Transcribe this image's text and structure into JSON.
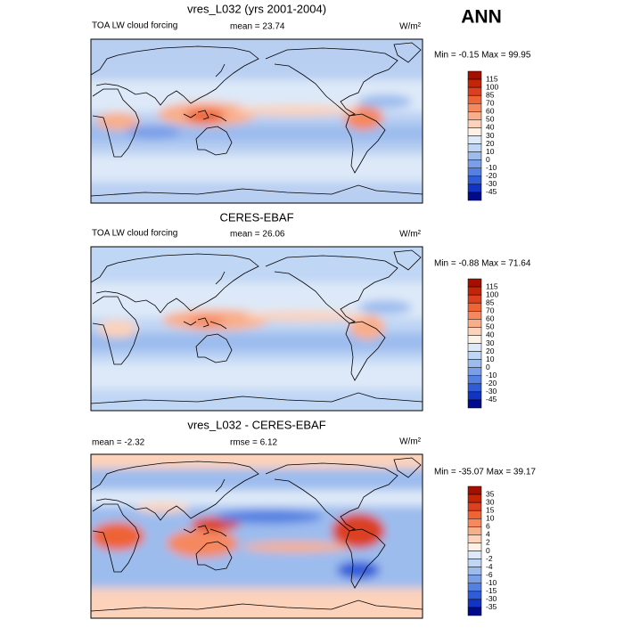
{
  "header": {
    "title": "ANN"
  },
  "panels": [
    {
      "title": "vres_L032 (yrs 2001-2004)",
      "left_label": "TOA LW cloud forcing",
      "center_label": "mean =  23.74",
      "units": "W/m²",
      "minmax": "Min = -0.15 Max =  99.95",
      "colorbar": {
        "labels": [
          "115",
          "100",
          "85",
          "70",
          "60",
          "50",
          "40",
          "30",
          "20",
          "10",
          "0",
          "-10",
          "-20",
          "-30",
          "-45"
        ],
        "colors": [
          "#a50f00",
          "#c42508",
          "#dc4020",
          "#ee6434",
          "#f5885e",
          "#f9ae8a",
          "#fcd2ba",
          "#fdf0e4",
          "#dde9f8",
          "#bfd6f4",
          "#9cbcee",
          "#7a9ee8",
          "#5480e2",
          "#305cd8",
          "#1234c4",
          "#000a8c"
        ]
      }
    },
    {
      "title": "CERES-EBAF",
      "left_label": "TOA LW cloud forcing",
      "center_label": "mean =  26.06",
      "units": "W/m²",
      "minmax": "Min = -0.88 Max =  71.64",
      "colorbar": {
        "labels": [
          "115",
          "100",
          "85",
          "70",
          "60",
          "50",
          "40",
          "30",
          "20",
          "10",
          "0",
          "-10",
          "-20",
          "-30",
          "-45"
        ],
        "colors": [
          "#a50f00",
          "#c42508",
          "#dc4020",
          "#ee6434",
          "#f5885e",
          "#f9ae8a",
          "#fcd2ba",
          "#fdf0e4",
          "#dde9f8",
          "#bfd6f4",
          "#9cbcee",
          "#7a9ee8",
          "#5480e2",
          "#305cd8",
          "#1234c4",
          "#000a8c"
        ]
      }
    },
    {
      "title": "vres_L032 - CERES-EBAF",
      "left_label": "mean =  -2.32",
      "center_label": "rmse =   6.12",
      "units": "W/m²",
      "minmax": "Min = -35.07 Max =  39.17",
      "colorbar": {
        "labels": [
          "35",
          "30",
          "15",
          "10",
          "6",
          "4",
          "2",
          "0",
          "-2",
          "-4",
          "-6",
          "-10",
          "-15",
          "-30",
          "-35"
        ],
        "colors": [
          "#a50f00",
          "#c42508",
          "#dc4020",
          "#ee6434",
          "#f5885e",
          "#f9ae8a",
          "#fcd2ba",
          "#fdf0e4",
          "#dde9f8",
          "#bfd6f4",
          "#9cbcee",
          "#7a9ee8",
          "#5480e2",
          "#305cd8",
          "#1234c4",
          "#000a8c"
        ]
      }
    }
  ]
}
